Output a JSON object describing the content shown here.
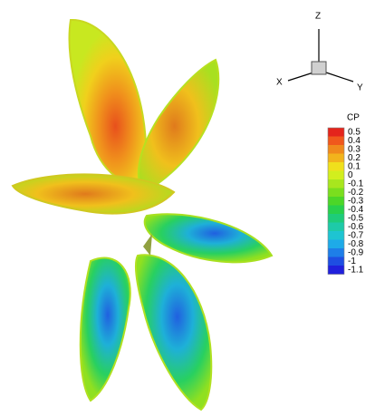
{
  "axes_triad": {
    "z": "Z",
    "x": "X",
    "y": "Y"
  },
  "colorbar": {
    "title": "CP",
    "levels": [
      {
        "value": 0.5,
        "color": "#e4241c"
      },
      {
        "value": 0.4,
        "color": "#f0581c"
      },
      {
        "value": 0.3,
        "color": "#f08a1c"
      },
      {
        "value": 0.2,
        "color": "#f2b41c"
      },
      {
        "value": 0.1,
        "color": "#f0e01c"
      },
      {
        "value": 0,
        "color": "#d2ee1e"
      },
      {
        "value": -0.1,
        "color": "#a8e61e"
      },
      {
        "value": -0.2,
        "color": "#7ade1e"
      },
      {
        "value": -0.3,
        "color": "#4cd628"
      },
      {
        "value": -0.4,
        "color": "#28d04c"
      },
      {
        "value": -0.5,
        "color": "#1ecc7a"
      },
      {
        "value": -0.6,
        "color": "#1ecaa8"
      },
      {
        "value": -0.7,
        "color": "#1ec4d2"
      },
      {
        "value": -0.8,
        "color": "#1eaae8"
      },
      {
        "value": -0.9,
        "color": "#1e7ee8"
      },
      {
        "value": -1,
        "color": "#1e4ee2"
      },
      {
        "value": -1.1,
        "color": "#2020dc"
      }
    ]
  }
}
